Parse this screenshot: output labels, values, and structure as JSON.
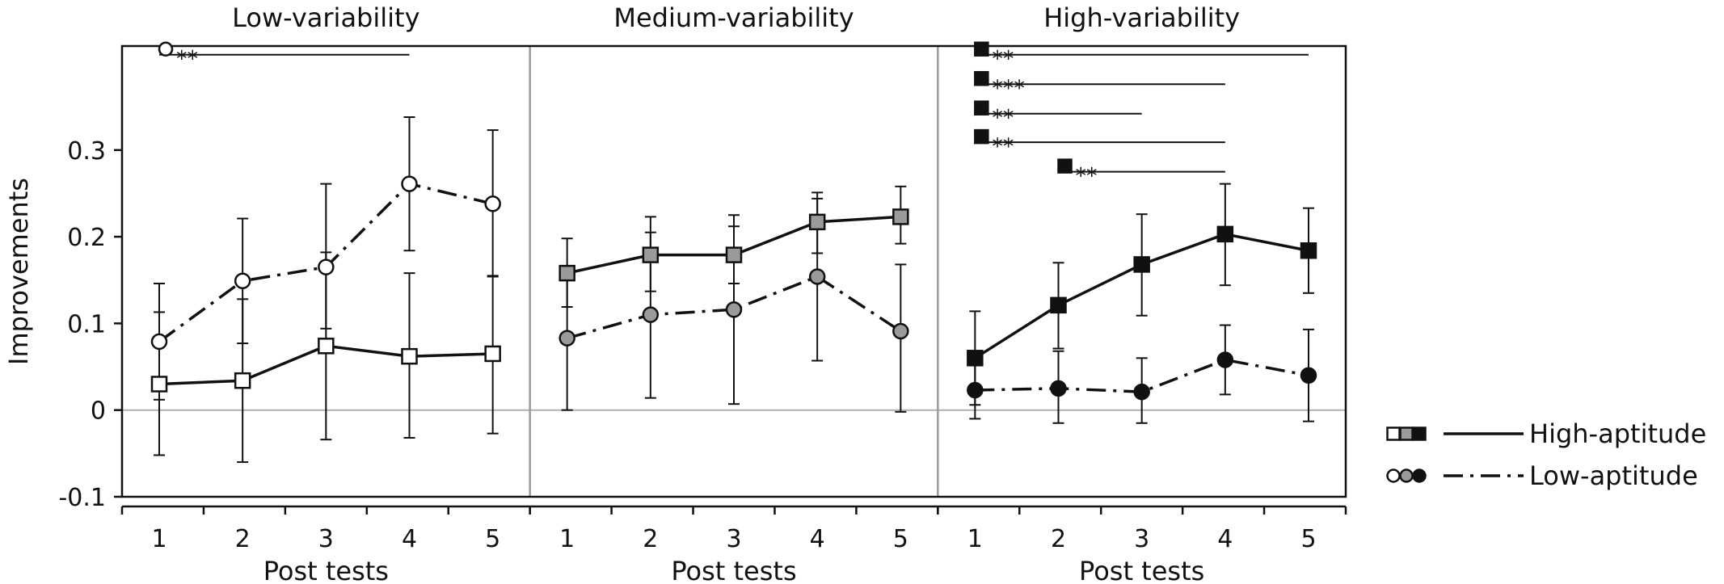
{
  "chart_data": {
    "type": "line",
    "ylabel": "Improvements",
    "xlabel": "Post tests",
    "ylim": [
      -0.1,
      0.42
    ],
    "y_ticks": [
      {
        "value": -0.1,
        "label": "-0.1"
      },
      {
        "value": 0,
        "label": "0"
      },
      {
        "value": 0.1,
        "label": "0.1"
      },
      {
        "value": 0.2,
        "label": "0.2"
      },
      {
        "value": 0.3,
        "label": "0.3"
      }
    ],
    "x": [
      1,
      2,
      3,
      4,
      5
    ],
    "x_tick_labels": [
      "1",
      "2",
      "3",
      "4",
      "5"
    ],
    "panels": [
      {
        "title": "Low-variability",
        "fill": "#ffffff",
        "series": [
          {
            "name": "High-aptitude",
            "marker": "square",
            "line": "solid",
            "values": [
              0.03,
              0.034,
              0.074,
              0.062,
              0.065
            ],
            "err_low": [
              -0.052,
              -0.06,
              -0.034,
              -0.032,
              -0.027
            ],
            "err_high": [
              0.113,
              0.128,
              0.182,
              0.158,
              0.155
            ]
          },
          {
            "name": "Low-aptitude",
            "marker": "circle",
            "line": "dashdot",
            "values": [
              0.079,
              0.149,
              0.165,
              0.261,
              0.238
            ],
            "err_low": [
              0.012,
              0.077,
              0.094,
              0.184,
              0.154
            ],
            "err_high": [
              0.146,
              0.221,
              0.261,
              0.338,
              0.323
            ]
          }
        ],
        "significance": [
          {
            "marker": "circle",
            "from": 1,
            "to": 4,
            "stars": "**",
            "level": 0.41
          }
        ]
      },
      {
        "title": "Medium-variability",
        "fill": "#9a9a9a",
        "series": [
          {
            "name": "High-aptitude",
            "marker": "square",
            "line": "solid",
            "values": [
              0.158,
              0.179,
              0.179,
              0.217,
              0.223
            ],
            "err_low": [
              0.119,
              0.137,
              0.146,
              0.181,
              0.192
            ],
            "err_high": [
              0.198,
              0.223,
              0.212,
              0.251,
              0.258
            ]
          },
          {
            "name": "Low-aptitude",
            "marker": "circle",
            "line": "dashdot",
            "values": [
              0.083,
              0.11,
              0.116,
              0.154,
              0.091
            ],
            "err_low": [
              0.0,
              0.014,
              0.007,
              0.057,
              -0.002
            ],
            "err_high": [
              0.166,
              0.205,
              0.225,
              0.244,
              0.168
            ]
          }
        ],
        "significance": []
      },
      {
        "title": "High-variability",
        "fill": "#111111",
        "series": [
          {
            "name": "High-aptitude",
            "marker": "square",
            "line": "solid",
            "values": [
              0.06,
              0.121,
              0.168,
              0.203,
              0.184
            ],
            "err_low": [
              0.006,
              0.071,
              0.109,
              0.144,
              0.135
            ],
            "err_high": [
              0.114,
              0.17,
              0.226,
              0.261,
              0.233
            ]
          },
          {
            "name": "Low-aptitude",
            "marker": "circle",
            "line": "dashdot",
            "values": [
              0.023,
              0.025,
              0.021,
              0.058,
              0.04
            ],
            "err_low": [
              -0.01,
              -0.015,
              -0.015,
              0.018,
              -0.013
            ],
            "err_high": [
              0.056,
              0.068,
              0.06,
              0.098,
              0.093
            ]
          }
        ],
        "significance": [
          {
            "marker": "square",
            "from": 1,
            "to": 5,
            "stars": "**",
            "level": 0.41
          },
          {
            "marker": "square",
            "from": 1,
            "to": 4,
            "stars": "***",
            "level": 0.376
          },
          {
            "marker": "square",
            "from": 1,
            "to": 3,
            "stars": "**",
            "level": 0.342
          },
          {
            "marker": "square",
            "from": 1,
            "to": 4,
            "stars": "**",
            "level": 0.309
          },
          {
            "marker": "square",
            "from": 2,
            "to": 4,
            "stars": "**",
            "level": 0.275
          }
        ]
      }
    ],
    "legend": {
      "placement": "right",
      "entries": [
        {
          "label": "High-aptitude",
          "marker": "square",
          "line": "solid"
        },
        {
          "label": "Low-aptitude",
          "marker": "circle",
          "line": "dashdot"
        }
      ]
    }
  }
}
